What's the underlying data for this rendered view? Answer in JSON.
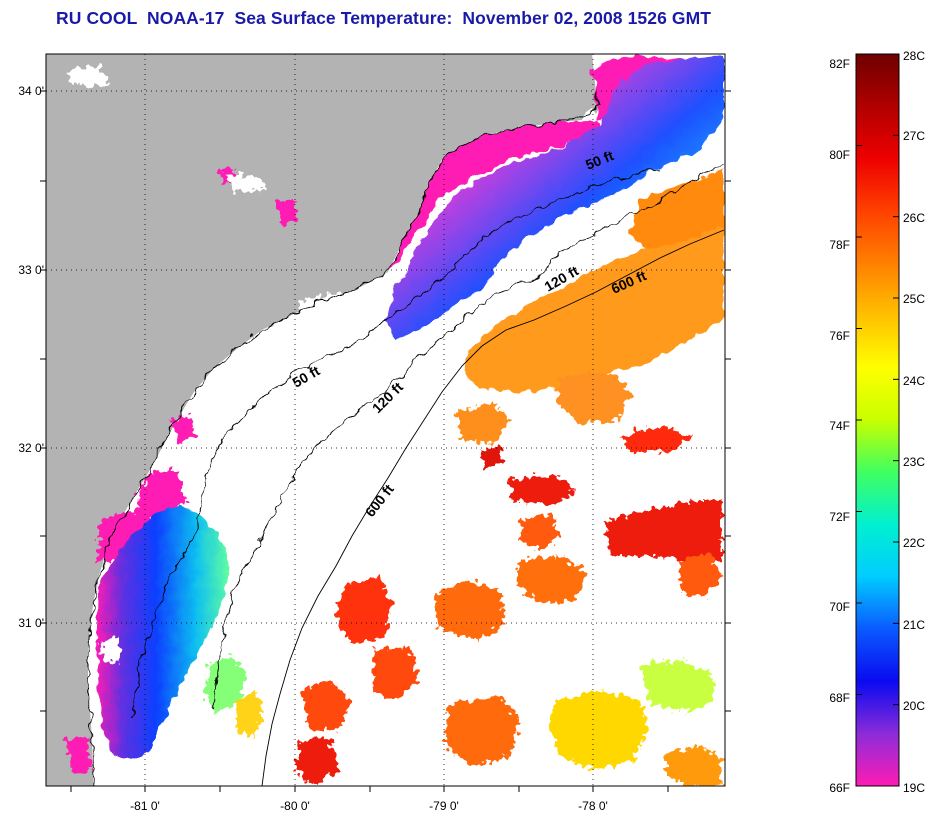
{
  "title": "RU COOL  NOAA-17  Sea Surface Temperature:  November 02, 2008 1526 GMT",
  "map": {
    "lat_labels": [
      "34 0'",
      "33 0'",
      "32 0'",
      "31 0'"
    ],
    "lon_labels": [
      "-81 0'",
      "-80 0'",
      "-79 0'",
      "-78 0'"
    ],
    "isobath_labels": [
      "50 ft",
      "50 ft",
      "120 ft",
      "120 ft",
      "600 ft",
      "600 ft"
    ],
    "colors": {
      "land": "#b3b3b3",
      "ocean_no_data": "#ffffff",
      "coastline": "#000000",
      "grid": "#000000"
    }
  },
  "colorbar": {
    "fahrenheit_labels": [
      "82F",
      "80F",
      "78F",
      "76F",
      "74F",
      "72F",
      "70F",
      "68F",
      "66F"
    ],
    "celsius_labels": [
      "28C",
      "27C",
      "26C",
      "25C",
      "24C",
      "23C",
      "22C",
      "21C",
      "20C",
      "19C"
    ],
    "gradient_stops": [
      "#ff1cb4",
      "#8c2cd8",
      "#0a0af0",
      "#0a5aff",
      "#00ccff",
      "#00f0d0",
      "#40ff60",
      "#c8ff00",
      "#ffff00",
      "#ffc000",
      "#ff8000",
      "#ff4000",
      "#ee0000",
      "#b00000",
      "#6e0000"
    ]
  }
}
